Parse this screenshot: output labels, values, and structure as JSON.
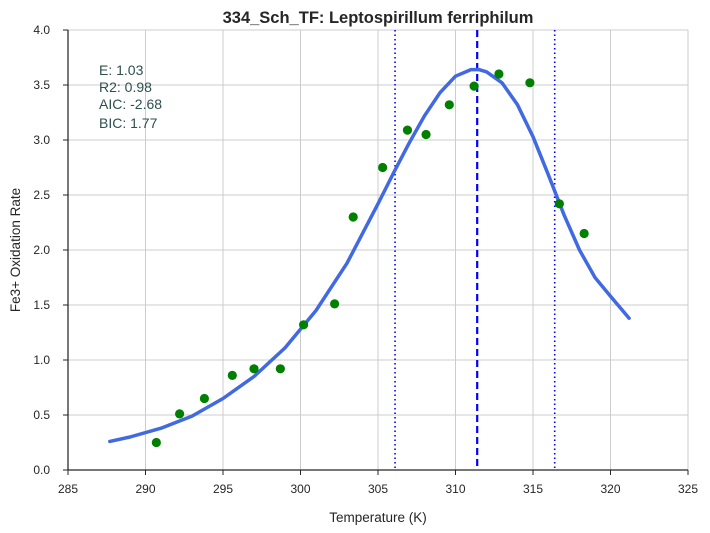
{
  "chart_data": {
    "type": "scatter",
    "title": "334_Sch_TF: Leptospirillum ferriphilum",
    "xlabel": "Temperature (K)",
    "ylabel": "Fe3+ Oxidation Rate",
    "xlim": [
      285,
      325
    ],
    "ylim": [
      0.0,
      4.0
    ],
    "xticks": [
      "285",
      "290",
      "295",
      "300",
      "305",
      "310",
      "315",
      "320",
      "325"
    ],
    "yticks": [
      "0.0",
      "0.5",
      "1.0",
      "1.5",
      "2.0",
      "2.5",
      "3.0",
      "3.5",
      "4.0"
    ],
    "grid": true,
    "series": [
      {
        "kind": "points",
        "color": "#008000",
        "x": [
          290.7,
          292.2,
          293.8,
          295.6,
          297.0,
          298.7,
          300.2,
          302.2,
          303.4,
          305.3,
          306.9,
          308.1,
          309.6,
          311.2,
          312.8,
          314.8,
          316.7,
          318.3
        ],
        "y": [
          0.25,
          0.51,
          0.65,
          0.86,
          0.92,
          0.92,
          1.32,
          1.51,
          2.3,
          2.75,
          3.09,
          3.05,
          3.32,
          3.49,
          3.6,
          3.52,
          2.42,
          2.15
        ]
      },
      {
        "kind": "fit",
        "color": "#4169e1",
        "x": [
          287.7,
          289,
          291,
          293,
          295,
          297,
          299,
          301,
          303,
          305,
          306,
          307,
          308,
          309,
          310,
          311,
          311.5,
          312,
          313,
          314,
          315,
          316,
          317,
          318,
          319,
          320,
          321.2
        ],
        "y": [
          0.26,
          0.3,
          0.38,
          0.49,
          0.65,
          0.85,
          1.11,
          1.45,
          1.88,
          2.42,
          2.7,
          2.97,
          3.22,
          3.43,
          3.58,
          3.64,
          3.64,
          3.62,
          3.52,
          3.32,
          3.03,
          2.68,
          2.32,
          2.0,
          1.75,
          1.58,
          1.38
        ]
      }
    ],
    "vlines": [
      {
        "x": 311.4,
        "style": "dashed",
        "color": "#0000ff"
      },
      {
        "x": 306.1,
        "style": "dotted",
        "color": "#0000ff"
      },
      {
        "x": 316.4,
        "style": "dotted",
        "color": "#0000ff"
      }
    ],
    "annotations": [
      "E:  1.03",
      "R2:  0.98",
      "AIC: -2.68",
      "BIC: 1.77"
    ]
  }
}
